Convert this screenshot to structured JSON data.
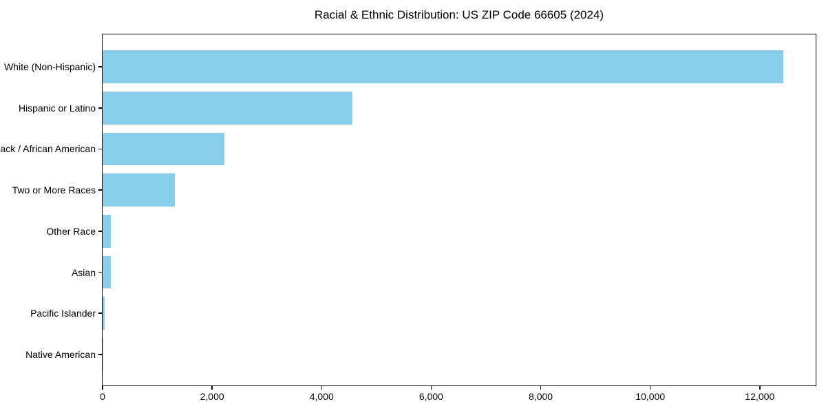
{
  "chart": {
    "title": "Racial & Ethnic Distribution: US ZIP Code 66605 (2024)"
  },
  "chart_data": {
    "type": "bar",
    "orientation": "horizontal",
    "title": "Racial & Ethnic Distribution: US ZIP Code 66605 (2024)",
    "categories": [
      "White (Non-Hispanic)",
      "Hispanic or Latino",
      "Black / African American",
      "Two or More Races",
      "Other Race",
      "Asian",
      "Pacific Islander",
      "Native American"
    ],
    "values": [
      12424,
      4556,
      2221,
      1315,
      155,
      150,
      38,
      12
    ],
    "xlabel": "",
    "ylabel": "",
    "xlim": [
      0,
      13045
    ],
    "x_ticks": [
      0,
      2000,
      4000,
      6000,
      8000,
      10000,
      12000
    ],
    "x_tick_labels": [
      "0",
      "2,000",
      "4,000",
      "6,000",
      "8,000",
      "10,000",
      "12,000"
    ],
    "bar_color": "#87CEEB",
    "background_color": "#ffffff",
    "text_color": "#000000",
    "grid": false,
    "legend": null
  }
}
